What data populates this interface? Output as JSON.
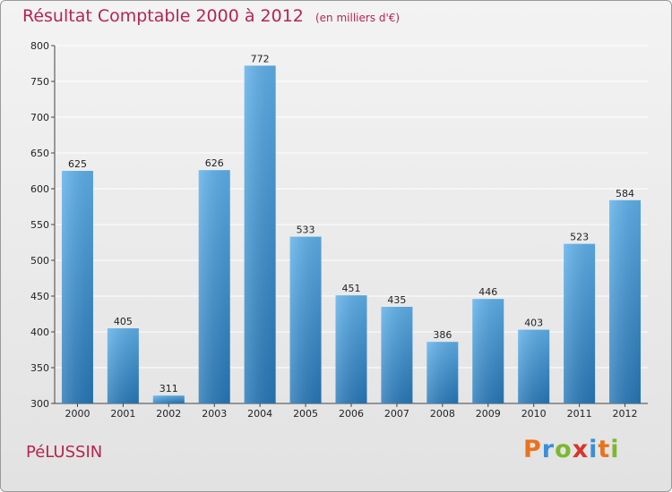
{
  "chart_data": {
    "type": "bar",
    "title": "Résultat Comptable 2000 à 2012",
    "subtitle": "(en milliers d'€)",
    "categories": [
      "2000",
      "2001",
      "2002",
      "2003",
      "2004",
      "2005",
      "2006",
      "2007",
      "2008",
      "2009",
      "2010",
      "2011",
      "2012"
    ],
    "values": [
      625,
      405,
      311,
      626,
      772,
      533,
      451,
      435,
      386,
      446,
      403,
      523,
      584
    ],
    "ylim": [
      300,
      800
    ],
    "yticks": [
      300,
      350,
      400,
      450,
      500,
      550,
      600,
      650,
      700,
      750,
      800
    ],
    "xlabel": "",
    "ylabel": "",
    "grid": true
  },
  "location": "PéLUSSIN",
  "brand": {
    "name": "Proxiti",
    "letters": [
      "P",
      "r",
      "o",
      "x",
      "i",
      "t",
      "i"
    ],
    "colors": [
      "#e8731e",
      "#3b8ed6",
      "#7cb82f",
      "#d9342b",
      "#3b8ed6",
      "#e8731e",
      "#7cb82f"
    ]
  },
  "colors": {
    "bar_top": "#5eb0ea",
    "bar_bottom": "#2778b8",
    "title": "#b5254e",
    "grid": "#ffffff"
  }
}
